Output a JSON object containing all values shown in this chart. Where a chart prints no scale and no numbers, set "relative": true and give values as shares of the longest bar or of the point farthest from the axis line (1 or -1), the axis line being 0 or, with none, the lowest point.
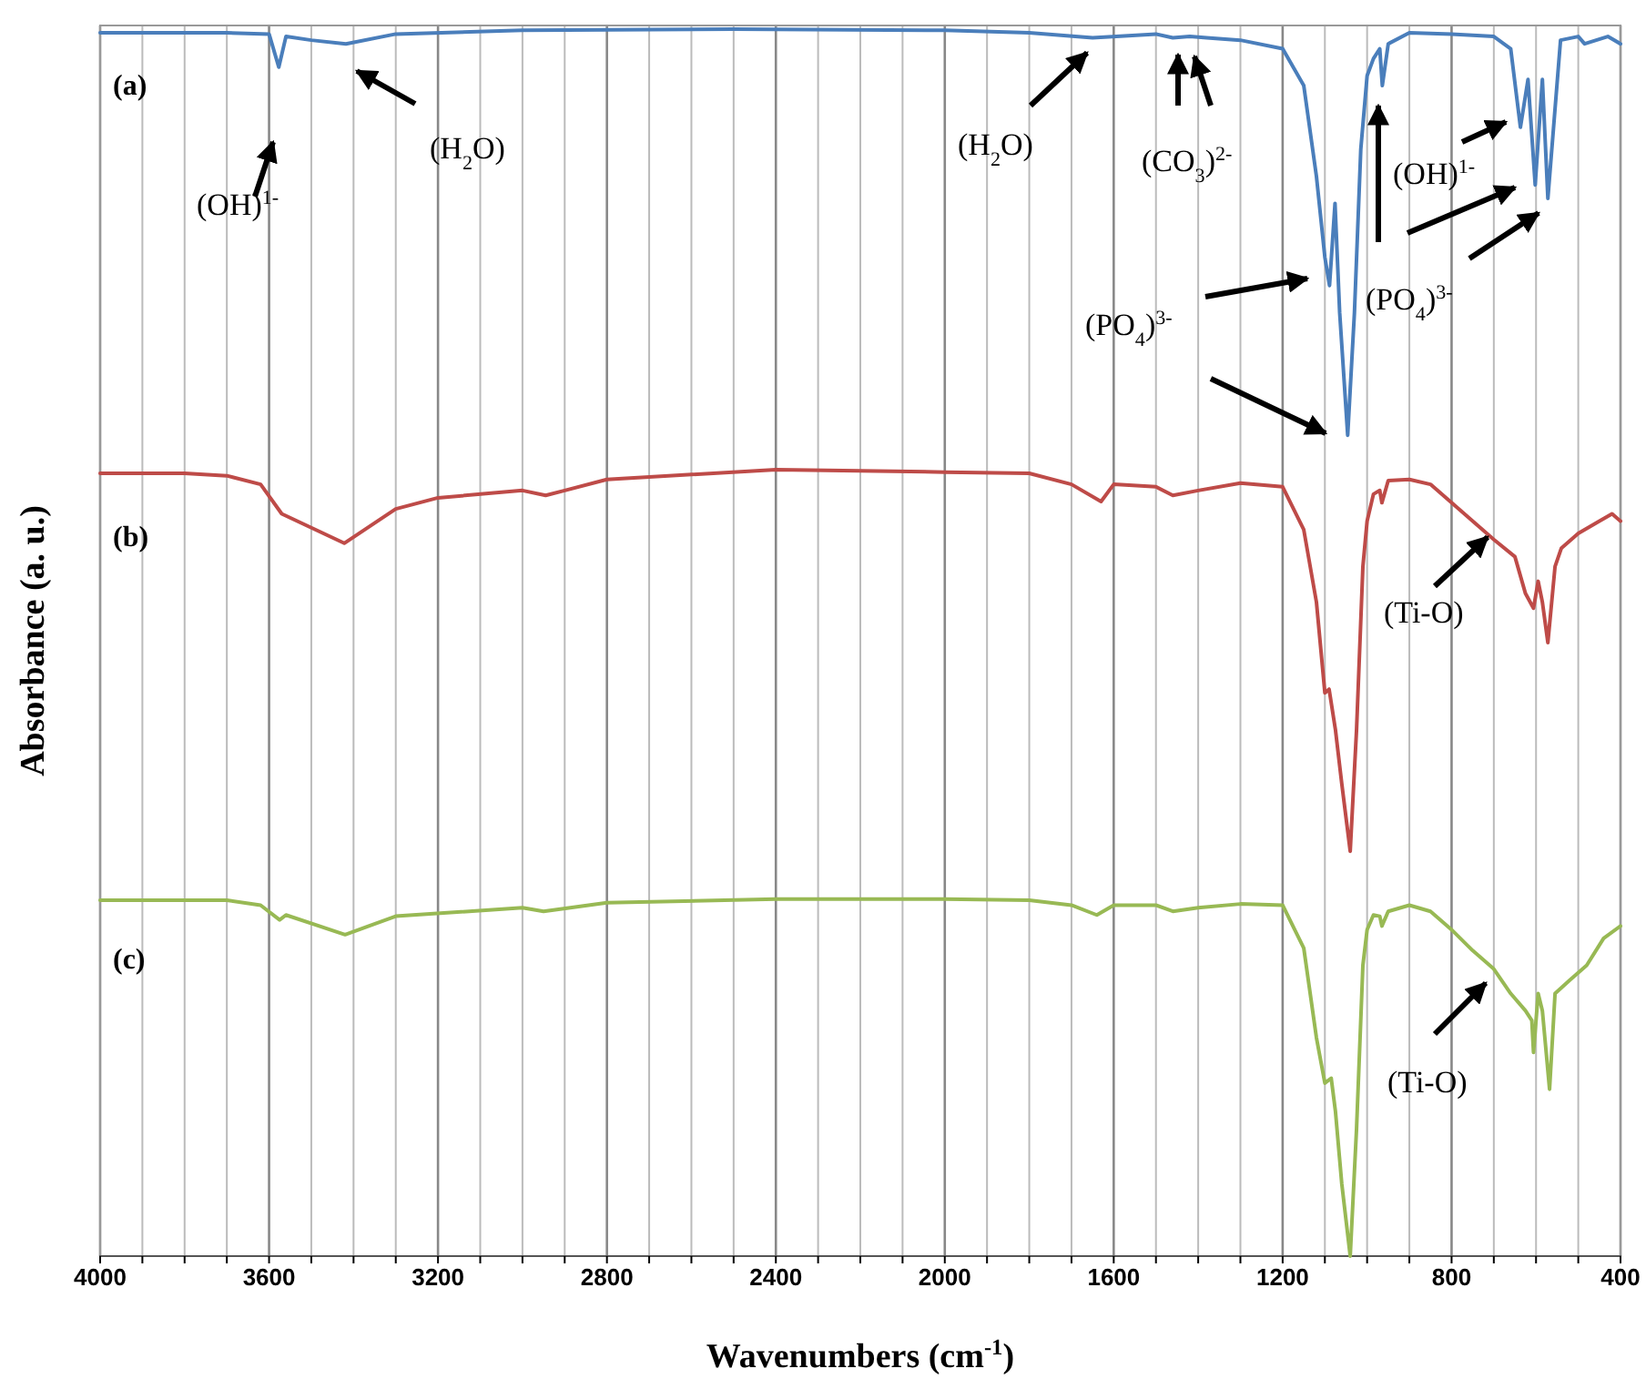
{
  "chart_data": {
    "type": "line",
    "relative": true,
    "xlabel": "Wavenumbers (cm$^{-1}$)",
    "ylabel": "Absorbance (a. u.)",
    "xlim": [
      4000,
      400
    ],
    "xticks": [
      4000,
      {
        "value": 3900,
        "label": null
      },
      {
        "value": 3800,
        "label": null
      },
      {
        "value": 3700,
        "label": null
      },
      3600,
      {
        "value": 3500,
        "label": null
      },
      {
        "value": 3400,
        "label": null
      },
      {
        "value": 3300,
        "label": null
      },
      3200,
      {
        "value": 3100,
        "label": null
      },
      {
        "value": 3000,
        "label": null
      },
      {
        "value": 2900,
        "label": null
      },
      2800,
      {
        "value": 2700,
        "label": null
      },
      {
        "value": 2600,
        "label": null
      },
      {
        "value": 2500,
        "label": null
      },
      2400,
      {
        "value": 2300,
        "label": null
      },
      {
        "value": 2200,
        "label": null
      },
      {
        "value": 2100,
        "label": null
      },
      2000,
      {
        "value": 1900,
        "label": null
      },
      {
        "value": 1800,
        "label": null
      },
      {
        "value": 1700,
        "label": null
      },
      1600,
      {
        "value": 1500,
        "label": null
      },
      {
        "value": 1400,
        "label": null
      },
      {
        "value": 1300,
        "label": null
      },
      1200,
      {
        "value": 1100,
        "label": null
      },
      {
        "value": 1000,
        "label": null
      },
      {
        "value": 900,
        "label": null
      },
      800,
      {
        "value": 700,
        "label": null
      },
      {
        "value": 600,
        "label": null
      },
      {
        "value": 500,
        "label": null
      },
      400
    ],
    "grid": "x",
    "line_style": "solid",
    "marker": "none",
    "series": [
      {
        "color": "#4a7ebb",
        "x": [
          4000,
          3700,
          3600,
          3577,
          3560,
          3500,
          3418,
          3300,
          3000,
          2500,
          2000,
          1800,
          1650,
          1500,
          1460,
          1420,
          1380,
          1300,
          1200,
          1150,
          1120,
          1100,
          1089,
          1076,
          1065,
          1046,
          1030,
          1015,
          1000,
          985,
          970,
          964,
          950,
          900,
          800,
          700,
          660,
          637,
          619,
          602,
          585,
          572,
          542,
          500,
          485,
          430,
          400
        ],
        "values": [
          0.997,
          0.997,
          0.996,
          0.969,
          0.994,
          0.991,
          0.988,
          0.996,
          0.999,
          1.0,
          0.999,
          0.997,
          0.993,
          0.996,
          0.993,
          0.994,
          0.993,
          0.991,
          0.984,
          0.954,
          0.88,
          0.814,
          0.791,
          0.858,
          0.769,
          0.669,
          0.769,
          0.902,
          0.962,
          0.976,
          0.984,
          0.954,
          0.988,
          0.997,
          0.996,
          0.994,
          0.984,
          0.92,
          0.959,
          0.873,
          0.959,
          0.862,
          0.991,
          0.994,
          0.988,
          0.994,
          0.988
        ]
      },
      {
        "color": "#be4b48",
        "x": [
          4000,
          3800,
          3700,
          3620,
          3570,
          3422,
          3300,
          3200,
          3000,
          2945,
          2900,
          2800,
          2400,
          2000,
          1800,
          1700,
          1630,
          1600,
          1500,
          1460,
          1400,
          1300,
          1200,
          1150,
          1120,
          1100,
          1090,
          1075,
          1060,
          1040,
          1025,
          1010,
          1000,
          985,
          970,
          965,
          950,
          900,
          850,
          800,
          750,
          700,
          650,
          625,
          606,
          595,
          585,
          572,
          555,
          540,
          500,
          450,
          420,
          400
        ],
        "values": [
          0.638,
          0.638,
          0.636,
          0.629,
          0.605,
          0.581,
          0.609,
          0.618,
          0.624,
          0.62,
          0.624,
          0.633,
          0.641,
          0.639,
          0.638,
          0.629,
          0.615,
          0.629,
          0.627,
          0.62,
          0.624,
          0.63,
          0.627,
          0.592,
          0.533,
          0.459,
          0.462,
          0.429,
          0.385,
          0.33,
          0.429,
          0.562,
          0.599,
          0.621,
          0.624,
          0.614,
          0.632,
          0.633,
          0.629,
          0.614,
          0.599,
          0.584,
          0.57,
          0.54,
          0.528,
          0.55,
          0.533,
          0.5,
          0.562,
          0.577,
          0.589,
          0.599,
          0.605,
          0.599
        ]
      },
      {
        "color": "#98b954",
        "x": [
          4000,
          3700,
          3620,
          3575,
          3560,
          3420,
          3300,
          3000,
          2950,
          2800,
          2400,
          2000,
          1800,
          1700,
          1640,
          1600,
          1500,
          1460,
          1400,
          1300,
          1200,
          1150,
          1120,
          1100,
          1085,
          1075,
          1060,
          1040,
          1025,
          1010,
          1000,
          985,
          970,
          965,
          950,
          900,
          850,
          800,
          750,
          700,
          660,
          625,
          610,
          606,
          595,
          585,
          568,
          555,
          520,
          480,
          440,
          400
        ],
        "values": [
          0.29,
          0.29,
          0.286,
          0.274,
          0.278,
          0.262,
          0.277,
          0.284,
          0.281,
          0.288,
          0.291,
          0.291,
          0.29,
          0.286,
          0.278,
          0.286,
          0.286,
          0.281,
          0.284,
          0.287,
          0.286,
          0.251,
          0.178,
          0.141,
          0.145,
          0.118,
          0.059,
          0,
          0.104,
          0.237,
          0.266,
          0.278,
          0.277,
          0.269,
          0.281,
          0.286,
          0.281,
          0.266,
          0.249,
          0.234,
          0.214,
          0.2,
          0.192,
          0.166,
          0.214,
          0.2,
          0.136,
          0.214,
          0.225,
          0.237,
          0.259,
          0.269
        ]
      }
    ],
    "annotations": [
      "(a)",
      "(b)",
      "(c)",
      "(OH)$^{1-}$",
      "(H$_{2}$O)",
      "(H$_{2}$O)",
      "(CO$_{3}$)$^{2-}$",
      "(OH)$^{1-}$",
      "(PO$_{4}$)$^{3-}$",
      "(PO$_{4}$)$^{3-}$",
      "(Ti-O)",
      "(Ti-O)"
    ]
  }
}
